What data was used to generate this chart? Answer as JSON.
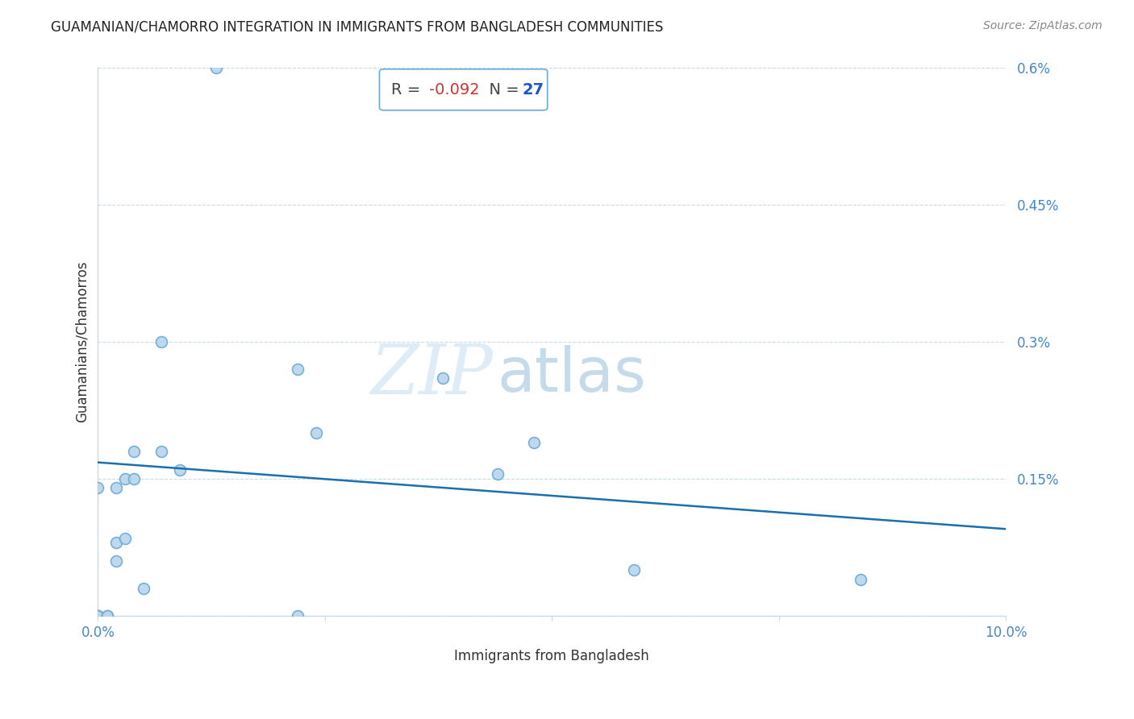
{
  "title": "GUAMANIAN/CHAMORRO INTEGRATION IN IMMIGRANTS FROM BANGLADESH COMMUNITIES",
  "source": "Source: ZipAtlas.com",
  "xlabel": "Immigrants from Bangladesh",
  "ylabel": "Guamanians/Chamorros",
  "R": -0.092,
  "N": 27,
  "xlim": [
    0.0,
    0.1
  ],
  "ylim": [
    0.0,
    0.006
  ],
  "yticks": [
    0.0,
    0.0015,
    0.003,
    0.0045,
    0.006
  ],
  "ytick_labels": [
    "",
    "0.15%",
    "0.3%",
    "0.45%",
    "0.6%"
  ],
  "xticks": [
    0.0,
    0.025,
    0.05,
    0.075,
    0.1
  ],
  "xtick_labels": [
    "0.0%",
    "",
    "",
    "",
    "10.0%"
  ],
  "scatter_x": [
    0.013,
    0.007,
    0.007,
    0.009,
    0.0,
    0.002,
    0.002,
    0.002,
    0.003,
    0.003,
    0.004,
    0.004,
    0.005,
    0.0,
    0.0,
    0.0,
    0.0,
    0.001,
    0.001,
    0.022,
    0.022,
    0.024,
    0.038,
    0.044,
    0.048,
    0.059,
    0.084
  ],
  "scatter_y": [
    0.006,
    0.003,
    0.0018,
    0.0016,
    0.0014,
    0.0014,
    0.0006,
    0.0008,
    0.00085,
    0.0015,
    0.0015,
    0.0018,
    0.0003,
    0.0,
    0.0,
    0.0,
    0.0,
    0.0,
    0.0,
    0.0027,
    0.0,
    0.002,
    0.0026,
    0.00155,
    0.0019,
    0.0005,
    0.0004
  ],
  "dot_color": "#b8d4ec",
  "dot_edge_color": "#6aaad4",
  "dot_size": 100,
  "line_color": "#1a6faf",
  "line_width": 1.8,
  "line_x0": 0.0,
  "line_y0": 0.00168,
  "line_x1": 0.1,
  "line_y1": 0.00095,
  "annotation_box_edge": "#6aaad4",
  "r_color": "#cc3333",
  "n_color": "#2255cc",
  "watermark_zip": "ZIP",
  "watermark_atlas": "atlas",
  "background_color": "#ffffff",
  "grid_color": "#c8dce8",
  "axis_color": "#c8dce8",
  "tick_label_color": "#4488cc",
  "title_color": "#222222",
  "label_color": "#333333",
  "source_color": "#888888"
}
